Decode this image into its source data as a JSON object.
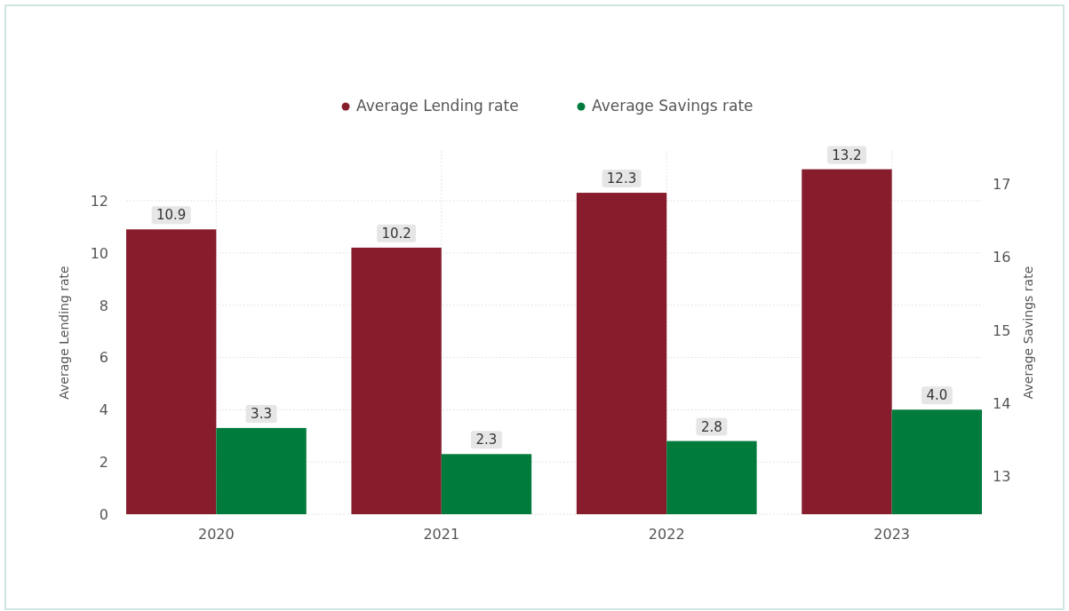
{
  "chart_data": {
    "type": "bar",
    "categories": [
      "2020",
      "2021",
      "2022",
      "2023"
    ],
    "series": [
      {
        "name": "Average Lending rate",
        "color": "#861c2c",
        "values": [
          10.9,
          10.2,
          12.3,
          13.2
        ],
        "value_labels": [
          "10.9",
          "10.2",
          "12.3",
          "13.2"
        ]
      },
      {
        "name": "Average Savings rate",
        "color": "#007b3c",
        "values": [
          3.3,
          2.3,
          2.8,
          4.0
        ],
        "value_labels": [
          "3.3",
          "2.3",
          "2.8",
          "4.0"
        ]
      }
    ],
    "ylabel": "Average Lending rate",
    "y2label": "Average Savings rate",
    "ylim": [
      0,
      13.9
    ],
    "yticks": [
      0,
      2,
      4,
      6,
      8,
      10,
      12
    ],
    "y2lim": [
      12.48,
      17.45
    ],
    "y2ticks": [
      13,
      14,
      15,
      16,
      17
    ],
    "grid": true,
    "legend": "top"
  }
}
